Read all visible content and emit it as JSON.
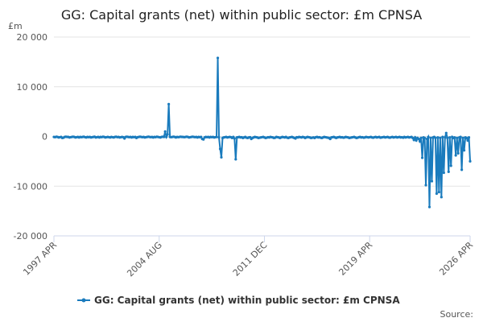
{
  "chart_data": {
    "type": "line",
    "title": "GG: Capital grants (net) within public sector: £m CPNSA",
    "y_unit": "£m",
    "source": "Source:",
    "grid": true,
    "categories": [
      "1997 APR",
      null,
      null,
      null,
      null,
      null,
      null,
      null,
      null,
      null,
      null,
      null,
      null,
      null,
      null,
      null,
      null,
      null,
      null,
      null,
      null,
      null,
      null,
      null,
      null,
      null,
      null,
      null,
      null,
      null,
      null,
      null,
      null,
      null,
      null,
      null,
      null,
      null,
      null,
      null,
      null,
      null,
      null,
      null,
      null,
      null,
      null,
      null,
      null,
      null,
      null,
      null,
      null,
      null,
      null,
      null,
      null,
      null,
      null,
      null,
      null,
      null,
      null,
      null,
      null,
      null,
      null,
      null,
      null,
      null,
      null,
      null,
      null,
      null,
      null,
      null,
      null,
      null,
      null,
      null,
      null,
      null,
      null,
      null,
      null,
      null,
      null,
      null,
      "2004 AUG",
      null,
      null,
      null,
      null,
      null,
      null,
      null,
      null,
      null,
      null,
      null,
      null,
      null,
      null,
      null,
      null,
      null,
      null,
      null,
      null,
      null,
      null,
      null,
      null,
      null,
      null,
      null,
      null,
      null,
      null,
      null,
      null,
      null,
      null,
      null,
      null,
      null,
      null,
      null,
      null,
      null,
      null,
      null,
      null,
      null,
      null,
      null,
      null,
      null,
      null,
      null,
      null,
      null,
      null,
      null,
      null,
      null,
      null,
      null,
      null,
      null,
      null,
      null,
      null,
      null,
      null,
      null,
      null,
      null,
      null,
      null,
      null,
      null,
      null,
      null,
      null,
      null,
      null,
      null,
      null,
      null,
      null,
      null,
      null,
      null,
      null,
      null,
      "2011 DEC",
      null,
      null,
      null,
      null,
      null,
      null,
      null,
      null,
      null,
      null,
      null,
      null,
      null,
      null,
      null,
      null,
      null,
      null,
      null,
      null,
      null,
      null,
      null,
      null,
      null,
      null,
      null,
      null,
      null,
      null,
      null,
      null,
      null,
      null,
      null,
      null,
      null,
      null,
      null,
      null,
      null,
      null,
      null,
      null,
      null,
      null,
      null,
      null,
      null,
      null,
      null,
      null,
      null,
      null,
      null,
      null,
      null,
      null,
      null,
      null,
      null,
      null,
      null,
      null,
      null,
      null,
      null,
      null,
      null,
      null,
      null,
      null,
      null,
      null,
      null,
      null,
      null,
      null,
      null,
      null,
      null,
      null,
      null,
      null,
      null,
      null,
      null,
      "2019 APR",
      null,
      null,
      null,
      null,
      null,
      null,
      null,
      null,
      null,
      null,
      null,
      null,
      null,
      null,
      null,
      null,
      null,
      null,
      null,
      null,
      null,
      null,
      null,
      null,
      null,
      null,
      null,
      null,
      null,
      null,
      null,
      null,
      null,
      null,
      null,
      null,
      null,
      null,
      null,
      null,
      null,
      null,
      null,
      null,
      null,
      null,
      null,
      null,
      null,
      null,
      null,
      null,
      null,
      null,
      null,
      null,
      null,
      null,
      null,
      null,
      null,
      null,
      null,
      null,
      null,
      null,
      null,
      null,
      null,
      null,
      null,
      null,
      null,
      null,
      null,
      null,
      null,
      null,
      null,
      null,
      null,
      null,
      null,
      "2026 APR"
    ],
    "series": [
      {
        "name": "GG: Capital grants (net) within public sector: £m CPNSA",
        "color": "#1a7bbd",
        "values": [
          -100,
          -150,
          -50,
          -100,
          -200,
          -150,
          -100,
          -300,
          -250,
          -100,
          -50,
          -100,
          -100,
          -200,
          -150,
          -100,
          -50,
          -100,
          -200,
          -150,
          -100,
          -200,
          -100,
          -150,
          -100,
          -50,
          -150,
          -200,
          -100,
          -150,
          -100,
          -200,
          -150,
          -100,
          -50,
          -200,
          -150,
          -100,
          -200,
          -100,
          -150,
          -50,
          -100,
          -200,
          -150,
          -100,
          -150,
          -200,
          -100,
          -150,
          -200,
          -100,
          -50,
          -150,
          -100,
          -200,
          -150,
          -100,
          -150,
          -400,
          -100,
          -50,
          -100,
          -150,
          -100,
          -200,
          -100,
          -150,
          -100,
          -300,
          -150,
          -100,
          -50,
          -100,
          -150,
          -100,
          -200,
          -150,
          -100,
          -50,
          -100,
          -150,
          -100,
          -200,
          -100,
          -150,
          -50,
          -100,
          -150,
          -200,
          -100,
          -50,
          -100,
          1000,
          -100,
          400,
          6500,
          -100,
          -150,
          -100,
          -50,
          -100,
          -200,
          -100,
          -150,
          -100,
          -50,
          -100,
          -100,
          -150,
          -100,
          -50,
          -100,
          -200,
          -150,
          -100,
          -50,
          -100,
          -150,
          -100,
          -200,
          -100,
          -150,
          -100,
          -500,
          -600,
          -200,
          -100,
          -150,
          -100,
          -200,
          -100,
          -150,
          -100,
          -200,
          -150,
          -100,
          15800,
          -200,
          -2500,
          -4200,
          -300,
          -200,
          -150,
          -100,
          -200,
          -150,
          -100,
          -150,
          -300,
          -100,
          -400,
          -4600,
          -200,
          -150,
          -100,
          -200,
          -150,
          -300,
          -200,
          -100,
          -250,
          -300,
          -200,
          -150,
          -500,
          -300,
          -200,
          -100,
          -150,
          -200,
          -300,
          -250,
          -200,
          -150,
          -100,
          -200,
          -300,
          -250,
          -150,
          -200,
          -100,
          -150,
          -200,
          -300,
          -250,
          -100,
          -150,
          -200,
          -300,
          -200,
          -100,
          -150,
          -200,
          -100,
          -250,
          -300,
          -200,
          -150,
          -100,
          -200,
          -300,
          -400,
          -150,
          -200,
          -100,
          -150,
          -200,
          -100,
          -150,
          -300,
          -200,
          -100,
          -150,
          -200,
          -300,
          -250,
          -200,
          -300,
          -150,
          -100,
          -200,
          -150,
          -250,
          -300,
          -200,
          -100,
          -150,
          -200,
          -250,
          -300,
          -500,
          -200,
          -150,
          -100,
          -200,
          -300,
          -200,
          -150,
          -100,
          -200,
          -150,
          -250,
          -200,
          -100,
          -150,
          -200,
          -300,
          -250,
          -200,
          -150,
          -100,
          -200,
          -300,
          -250,
          -150,
          -100,
          -200,
          -150,
          -250,
          -200,
          -100,
          -150,
          -200,
          -150,
          -100,
          -200,
          -250,
          -150,
          -100,
          -200,
          -150,
          -100,
          -250,
          -200,
          -150,
          -100,
          -200,
          -150,
          -100,
          -200,
          -250,
          -150,
          -100,
          -200,
          -150,
          -100,
          -200,
          -150,
          -100,
          -200,
          -150,
          -250,
          -100,
          -200,
          -150,
          -100,
          -200,
          -150,
          -100,
          -300,
          -700,
          -200,
          -800,
          -300,
          -500,
          -1000,
          -300,
          -4300,
          -200,
          -300,
          -9800,
          -500,
          -100,
          -14200,
          -300,
          -9000,
          -200,
          -100,
          -300,
          -11500,
          -200,
          -11200,
          -300,
          -12200,
          -100,
          -7300,
          -200,
          700,
          -300,
          -7100,
          -200,
          -5900,
          -100,
          -300,
          -200,
          -3800,
          -300,
          -3400,
          -200,
          -100,
          -6700,
          -300,
          -2800,
          -200,
          -300,
          -800,
          -200,
          -5000
        ]
      }
    ],
    "ylim": [
      -20000,
      20000
    ],
    "yticks": [
      {
        "value": -20000,
        "label": "-20 000"
      },
      {
        "value": -10000,
        "label": "-10 000"
      },
      0,
      {
        "value": 10000,
        "label": "10 000"
      },
      {
        "value": 20000,
        "label": "20 000"
      }
    ]
  }
}
